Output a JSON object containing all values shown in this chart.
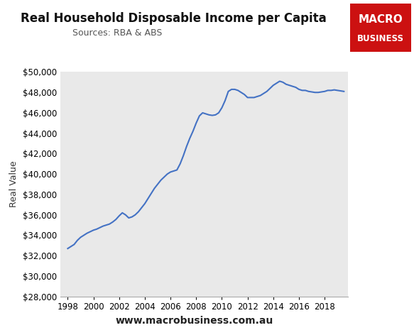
{
  "title": "Real Household Disposable Income per Capita",
  "subtitle": "Sources: RBA & ABS",
  "ylabel": "Real Value",
  "website": "www.macrobusiness.com.au",
  "line_color": "#4472C4",
  "bg_color": "#E9E9E9",
  "fig_bg": "#FFFFFF",
  "ylim": [
    28000,
    50000
  ],
  "yticks": [
    28000,
    30000,
    32000,
    34000,
    36000,
    38000,
    40000,
    42000,
    44000,
    46000,
    48000,
    50000
  ],
  "xticks": [
    1998,
    2000,
    2002,
    2004,
    2006,
    2008,
    2010,
    2012,
    2014,
    2016,
    2018
  ],
  "xlim": [
    1997.4,
    2019.8
  ],
  "years": [
    1998.0,
    1998.25,
    1998.5,
    1998.75,
    1999.0,
    1999.25,
    1999.5,
    1999.75,
    2000.0,
    2000.25,
    2000.5,
    2000.75,
    2001.0,
    2001.25,
    2001.5,
    2001.75,
    2002.0,
    2002.25,
    2002.5,
    2002.75,
    2003.0,
    2003.25,
    2003.5,
    2003.75,
    2004.0,
    2004.25,
    2004.5,
    2004.75,
    2005.0,
    2005.25,
    2005.5,
    2005.75,
    2006.0,
    2006.25,
    2006.5,
    2006.75,
    2007.0,
    2007.25,
    2007.5,
    2007.75,
    2008.0,
    2008.25,
    2008.5,
    2008.75,
    2009.0,
    2009.25,
    2009.5,
    2009.75,
    2010.0,
    2010.25,
    2010.5,
    2010.75,
    2011.0,
    2011.25,
    2011.5,
    2011.75,
    2012.0,
    2012.25,
    2012.5,
    2012.75,
    2013.0,
    2013.25,
    2013.5,
    2013.75,
    2014.0,
    2014.25,
    2014.5,
    2014.75,
    2015.0,
    2015.25,
    2015.5,
    2015.75,
    2016.0,
    2016.25,
    2016.5,
    2016.75,
    2017.0,
    2017.25,
    2017.5,
    2017.75,
    2018.0,
    2018.25,
    2018.5,
    2018.75,
    2019.0,
    2019.25,
    2019.5
  ],
  "values": [
    32700,
    32900,
    33100,
    33500,
    33800,
    34000,
    34200,
    34350,
    34500,
    34600,
    34750,
    34900,
    35000,
    35100,
    35300,
    35550,
    35900,
    36200,
    36000,
    35700,
    35800,
    36000,
    36300,
    36700,
    37100,
    37600,
    38100,
    38600,
    39000,
    39400,
    39700,
    40000,
    40200,
    40300,
    40400,
    41000,
    41800,
    42700,
    43500,
    44200,
    45000,
    45700,
    46000,
    45900,
    45800,
    45750,
    45800,
    46000,
    46500,
    47200,
    48100,
    48300,
    48300,
    48200,
    48000,
    47800,
    47500,
    47500,
    47500,
    47600,
    47700,
    47900,
    48100,
    48400,
    48700,
    48900,
    49100,
    49000,
    48800,
    48700,
    48600,
    48500,
    48300,
    48200,
    48200,
    48100,
    48050,
    48000,
    48000,
    48050,
    48100,
    48200,
    48200,
    48250,
    48200,
    48150,
    48100
  ],
  "logo_macro_fontsize": 11,
  "logo_business_fontsize": 8.5,
  "title_fontsize": 12,
  "subtitle_fontsize": 9,
  "ylabel_fontsize": 9,
  "tick_fontsize": 8.5,
  "website_fontsize": 10
}
